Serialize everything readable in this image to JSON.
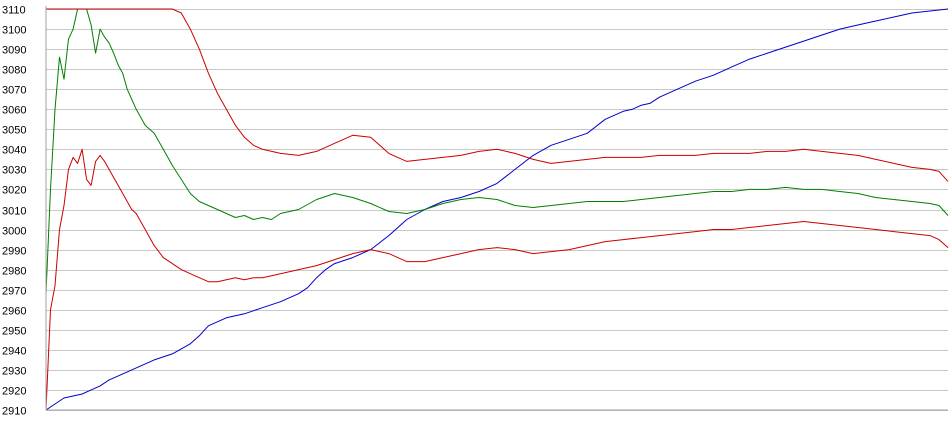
{
  "chart_data": {
    "type": "line",
    "title": "",
    "xlabel": "",
    "ylabel": "",
    "ylim": [
      2910,
      3110
    ],
    "yticks": [
      2910,
      2920,
      2930,
      2940,
      2950,
      2960,
      2970,
      2980,
      2990,
      3000,
      3010,
      3020,
      3030,
      3040,
      3050,
      3060,
      3070,
      3080,
      3090,
      3100,
      3110
    ],
    "xlim": [
      0,
      100
    ],
    "grid": "horizontal",
    "legend": "none",
    "series": [
      {
        "color": "#0000cc",
        "x": [
          0,
          1,
          2,
          3,
          4,
          5,
          6,
          7,
          8,
          9,
          10,
          12,
          14,
          16,
          17,
          18,
          19,
          20,
          22,
          24,
          26,
          28,
          29,
          30,
          31,
          32,
          34,
          36,
          38,
          40,
          42,
          44,
          46,
          48,
          50,
          52,
          54,
          56,
          58,
          60,
          62,
          64,
          65,
          66,
          67,
          68,
          70,
          72,
          74,
          76,
          78,
          80,
          82,
          84,
          86,
          88,
          90,
          92,
          94,
          96,
          98,
          100
        ],
        "values": [
          2910,
          2913,
          2916,
          2917,
          2918,
          2920,
          2922,
          2925,
          2927,
          2929,
          2931,
          2935,
          2938,
          2943,
          2947,
          2952,
          2954,
          2956,
          2958,
          2961,
          2964,
          2968,
          2971,
          2976,
          2980,
          2983,
          2986,
          2990,
          2997,
          3005,
          3010,
          3014,
          3016,
          3019,
          3023,
          3030,
          3037,
          3042,
          3045,
          3048,
          3055,
          3059,
          3060,
          3062,
          3063,
          3066,
          3070,
          3074,
          3077,
          3081,
          3085,
          3088,
          3091,
          3094,
          3097,
          3100,
          3102,
          3104,
          3106,
          3108,
          3109,
          3110
        ]
      },
      {
        "color": "#008000",
        "x": [
          0,
          0.5,
          1,
          1.5,
          2,
          2.5,
          3,
          3.5,
          4,
          4.5,
          5,
          5.5,
          6,
          6.5,
          7,
          7.5,
          8,
          8.5,
          9,
          9.5,
          10,
          11,
          12,
          13,
          14,
          15,
          16,
          17,
          18,
          19,
          20,
          21,
          22,
          23,
          24,
          25,
          26,
          28,
          30,
          32,
          34,
          36,
          38,
          40,
          42,
          44,
          46,
          48,
          50,
          52,
          54,
          56,
          58,
          60,
          62,
          64,
          66,
          68,
          70,
          72,
          74,
          76,
          78,
          80,
          82,
          84,
          86,
          88,
          90,
          92,
          94,
          96,
          98,
          99,
          100
        ],
        "values": [
          2968,
          3020,
          3060,
          3086,
          3075,
          3095,
          3100,
          3110,
          3110,
          3110,
          3102,
          3088,
          3100,
          3096,
          3093,
          3088,
          3082,
          3078,
          3070,
          3065,
          3060,
          3052,
          3048,
          3040,
          3032,
          3025,
          3018,
          3014,
          3012,
          3010,
          3008,
          3006,
          3007,
          3005,
          3006,
          3005,
          3008,
          3010,
          3015,
          3018,
          3016,
          3013,
          3009,
          3008,
          3010,
          3013,
          3015,
          3016,
          3015,
          3012,
          3011,
          3012,
          3013,
          3014,
          3014,
          3014,
          3015,
          3016,
          3017,
          3018,
          3019,
          3019,
          3020,
          3020,
          3021,
          3020,
          3020,
          3019,
          3018,
          3016,
          3015,
          3014,
          3013,
          3012,
          3007
        ]
      },
      {
        "color": "#cc0000",
        "x": [
          0,
          1,
          2,
          3,
          4,
          5,
          6,
          7,
          8,
          9,
          10,
          11,
          12,
          13,
          14,
          15,
          16,
          17,
          18,
          19,
          20,
          21,
          22,
          23,
          24,
          26,
          28,
          30,
          32,
          34,
          36,
          38,
          40,
          42,
          44,
          46,
          48,
          50,
          52,
          54,
          56,
          58,
          60,
          62,
          64,
          66,
          68,
          70,
          72,
          74,
          76,
          78,
          80,
          82,
          84,
          86,
          88,
          90,
          92,
          94,
          96,
          98,
          99,
          100
        ],
        "values": [
          3110,
          3110,
          3110,
          3110,
          3110,
          3110,
          3110,
          3110,
          3110,
          3110,
          3110,
          3110,
          3110,
          3110,
          3110,
          3108,
          3100,
          3090,
          3078,
          3068,
          3060,
          3052,
          3046,
          3042,
          3040,
          3038,
          3037,
          3039,
          3043,
          3047,
          3046,
          3038,
          3034,
          3035,
          3036,
          3037,
          3039,
          3040,
          3038,
          3035,
          3033,
          3034,
          3035,
          3036,
          3036,
          3036,
          3037,
          3037,
          3037,
          3038,
          3038,
          3038,
          3039,
          3039,
          3040,
          3039,
          3038,
          3037,
          3035,
          3033,
          3031,
          3030,
          3029,
          3024
        ]
      },
      {
        "color": "#cc0000",
        "x": [
          0,
          0.5,
          1,
          1.5,
          2,
          2.5,
          3,
          3.5,
          4,
          4.5,
          5,
          5.5,
          6,
          6.5,
          7,
          7.5,
          8,
          8.5,
          9,
          9.5,
          10,
          11,
          12,
          13,
          14,
          15,
          16,
          17,
          18,
          19,
          20,
          21,
          22,
          23,
          24,
          25,
          26,
          28,
          30,
          32,
          34,
          36,
          38,
          40,
          42,
          44,
          46,
          48,
          50,
          52,
          54,
          56,
          58,
          60,
          62,
          64,
          66,
          68,
          70,
          72,
          74,
          76,
          78,
          80,
          82,
          84,
          86,
          88,
          90,
          92,
          94,
          96,
          98,
          99,
          100
        ],
        "values": [
          2910,
          2960,
          2972,
          3000,
          3012,
          3030,
          3036,
          3033,
          3040,
          3025,
          3022,
          3034,
          3037,
          3034,
          3030,
          3026,
          3022,
          3018,
          3014,
          3010,
          3008,
          3000,
          2992,
          2986,
          2983,
          2980,
          2978,
          2976,
          2974,
          2974,
          2975,
          2976,
          2975,
          2976,
          2976,
          2977,
          2978,
          2980,
          2982,
          2985,
          2988,
          2990,
          2988,
          2984,
          2984,
          2986,
          2988,
          2990,
          2991,
          2990,
          2988,
          2989,
          2990,
          2992,
          2994,
          2995,
          2996,
          2997,
          2998,
          2999,
          3000,
          3000,
          3001,
          3002,
          3003,
          3004,
          3003,
          3002,
          3001,
          3000,
          2999,
          2998,
          2997,
          2995,
          2991
        ]
      }
    ]
  }
}
